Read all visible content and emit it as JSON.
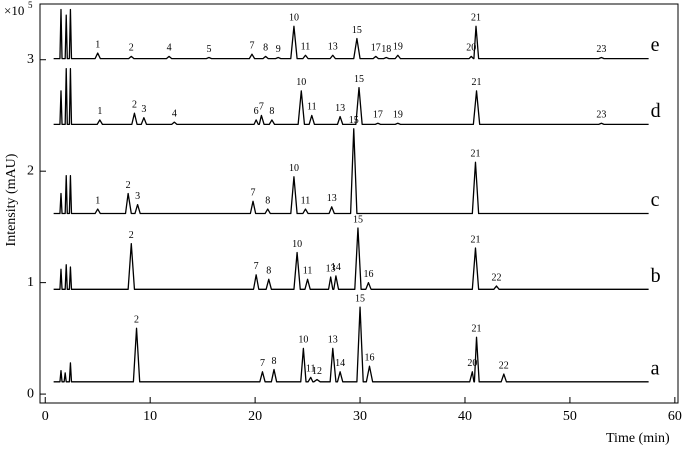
{
  "chart_data": {
    "type": "line",
    "x_label": "Time (min)",
    "y_label": "Intensity (mAU)",
    "y_unit_base": "×10",
    "y_unit_exponent": "5",
    "xlim": [
      -0.5,
      60.3
    ],
    "xticks": [
      0,
      10,
      20,
      30,
      40,
      50,
      60
    ],
    "ylim": [
      -0.08,
      3.5
    ],
    "yticks": [
      0,
      1,
      2,
      3
    ],
    "series": [
      {
        "name": "e",
        "color": "#000000",
        "x": [
          0.8,
          1.4,
          1.5,
          1.6,
          1.9,
          2.0,
          2.1,
          2.3,
          2.4,
          2.5,
          4.75,
          5,
          5.25,
          7.95,
          8.2,
          8.45,
          11.55,
          11.8,
          12.05,
          15.35,
          15.6,
          15.85,
          19.45,
          19.7,
          19.95,
          20.75,
          21,
          21.25,
          21.95,
          22.2,
          22.45,
          23.4,
          23.7,
          24.0,
          24.55,
          24.8,
          25.05,
          27.15,
          27.4,
          27.65,
          29.4,
          29.7,
          30.0,
          31.25,
          31.5,
          31.75,
          32.25,
          32.5,
          32.75,
          33.35,
          33.6,
          33.85,
          40.4,
          40.6,
          40.8,
          40.85,
          41.05,
          41.3,
          52.75,
          53,
          53.25,
          57.5
        ],
        "values": [
          3.01,
          3.01,
          3.45,
          3.01,
          3.01,
          3.4,
          3.01,
          3.01,
          3.45,
          3.01,
          3.01,
          3.06,
          3.01,
          3.01,
          3.03,
          3.01,
          3.01,
          3.03,
          3.01,
          3.01,
          3.02,
          3.01,
          3.01,
          3.05,
          3.01,
          3.01,
          3.03,
          3.01,
          3.01,
          3.02,
          3.01,
          3.01,
          3.3,
          3.01,
          3.01,
          3.04,
          3.01,
          3.01,
          3.04,
          3.01,
          3.01,
          3.19,
          3.01,
          3.01,
          3.03,
          3.01,
          3.01,
          3.02,
          3.01,
          3.01,
          3.04,
          3.01,
          3.01,
          3.03,
          3.01,
          3.01,
          3.3,
          3.01,
          3.01,
          3.02,
          3.01,
          3.01
        ],
        "peak_labels": [
          null,
          null,
          null,
          null,
          null,
          null,
          null,
          null,
          null,
          null,
          null,
          "1",
          null,
          null,
          "2",
          null,
          null,
          "4",
          null,
          null,
          "5",
          null,
          null,
          "7",
          null,
          null,
          "8",
          null,
          null,
          "9",
          null,
          null,
          "10",
          null,
          null,
          "11",
          null,
          null,
          "13",
          null,
          null,
          "15",
          null,
          null,
          "17",
          null,
          null,
          "18",
          null,
          null,
          "19",
          null,
          null,
          "20",
          null,
          null,
          "21",
          null,
          null,
          "23",
          null,
          null
        ]
      },
      {
        "name": "d",
        "color": "#000000",
        "x": [
          0.8,
          1.4,
          1.5,
          1.6,
          1.9,
          2.0,
          2.1,
          2.3,
          2.4,
          2.5,
          4.95,
          5.2,
          5.45,
          8.25,
          8.5,
          8.75,
          9.15,
          9.4,
          9.65,
          12.05,
          12.3,
          12.55,
          19.9,
          20.1,
          20.3,
          20.4,
          20.6,
          20.85,
          21.35,
          21.6,
          21.85,
          24.1,
          24.4,
          24.7,
          25.15,
          25.4,
          25.65,
          27.85,
          28.1,
          28.35,
          29.6,
          29.9,
          30.2,
          31.45,
          31.7,
          31.95,
          33.35,
          33.6,
          33.85,
          40.8,
          41.1,
          41.4,
          52.75,
          53,
          53.25,
          57.5
        ],
        "values": [
          2.42,
          2.42,
          2.72,
          2.42,
          2.42,
          2.92,
          2.42,
          2.42,
          2.92,
          2.42,
          2.42,
          2.46,
          2.42,
          2.42,
          2.52,
          2.42,
          2.42,
          2.48,
          2.42,
          2.42,
          2.44,
          2.42,
          2.42,
          2.46,
          2.42,
          2.42,
          2.5,
          2.42,
          2.42,
          2.46,
          2.42,
          2.42,
          2.72,
          2.42,
          2.42,
          2.5,
          2.42,
          2.42,
          2.49,
          2.42,
          2.42,
          2.75,
          2.42,
          2.42,
          2.43,
          2.42,
          2.42,
          2.43,
          2.42,
          2.42,
          2.72,
          2.42,
          2.42,
          2.43,
          2.42,
          2.42
        ],
        "peak_labels": [
          null,
          null,
          null,
          null,
          null,
          null,
          null,
          null,
          null,
          null,
          null,
          "1",
          null,
          null,
          "2",
          null,
          null,
          "3",
          null,
          null,
          "4",
          null,
          null,
          "6",
          null,
          null,
          "7",
          null,
          null,
          "8",
          null,
          null,
          "10",
          null,
          null,
          "11",
          null,
          null,
          "13",
          null,
          null,
          "15",
          null,
          null,
          "17",
          null,
          null,
          "19",
          null,
          null,
          "21",
          null,
          null,
          "23",
          null,
          null
        ]
      },
      {
        "name": "c",
        "color": "#000000",
        "x": [
          0.8,
          1.4,
          1.5,
          1.6,
          1.9,
          2.0,
          2.1,
          2.3,
          2.4,
          2.5,
          4.75,
          5,
          5.25,
          7.65,
          7.9,
          8.2,
          8.55,
          8.8,
          9.05,
          19.55,
          19.8,
          20.05,
          20.95,
          21.2,
          21.45,
          23.4,
          23.7,
          24.0,
          24.55,
          24.8,
          25.05,
          27.05,
          27.3,
          27.55,
          29.1,
          29.4,
          29.7,
          40.7,
          41.0,
          41.3,
          57.5
        ],
        "values": [
          1.62,
          1.62,
          1.8,
          1.62,
          1.62,
          1.96,
          1.62,
          1.62,
          1.96,
          1.62,
          1.62,
          1.66,
          1.62,
          1.62,
          1.8,
          1.62,
          1.62,
          1.7,
          1.62,
          1.62,
          1.73,
          1.62,
          1.62,
          1.66,
          1.62,
          1.62,
          1.95,
          1.62,
          1.62,
          1.66,
          1.62,
          1.62,
          1.68,
          1.62,
          1.62,
          2.38,
          1.62,
          1.62,
          2.08,
          1.62,
          1.62
        ],
        "peak_labels": [
          null,
          null,
          null,
          null,
          null,
          null,
          null,
          null,
          null,
          null,
          null,
          "1",
          null,
          null,
          "2",
          null,
          null,
          "3",
          null,
          null,
          "7",
          null,
          null,
          "8",
          null,
          null,
          "10",
          null,
          null,
          "11",
          null,
          null,
          "13",
          null,
          null,
          "15",
          null,
          null,
          "21",
          null,
          null
        ]
      },
      {
        "name": "b",
        "color": "#000000",
        "x": [
          0.8,
          1.4,
          1.5,
          1.6,
          1.9,
          2.0,
          2.1,
          2.3,
          2.4,
          2.5,
          7.9,
          8.2,
          8.5,
          19.85,
          20.1,
          20.35,
          21.05,
          21.3,
          21.55,
          23.7,
          24.0,
          24.3,
          24.75,
          25.0,
          25.25,
          27.0,
          27.2,
          27.4,
          27.5,
          27.7,
          27.95,
          29.5,
          29.8,
          30.1,
          30.55,
          30.8,
          31.05,
          40.7,
          41.0,
          41.3,
          42.75,
          43.0,
          43.25,
          57.5
        ],
        "values": [
          0.94,
          0.94,
          1.12,
          0.94,
          0.94,
          1.16,
          0.94,
          0.94,
          1.14,
          0.94,
          0.94,
          1.35,
          0.94,
          0.94,
          1.07,
          0.94,
          0.94,
          1.03,
          0.94,
          0.94,
          1.27,
          0.94,
          0.94,
          1.03,
          0.94,
          0.94,
          1.05,
          0.94,
          0.94,
          1.06,
          0.94,
          0.94,
          1.49,
          0.94,
          0.94,
          1.0,
          0.94,
          0.94,
          1.31,
          0.94,
          0.94,
          0.97,
          0.94,
          0.94
        ],
        "peak_labels": [
          null,
          null,
          null,
          null,
          null,
          null,
          null,
          null,
          null,
          null,
          null,
          "2",
          null,
          null,
          "7",
          null,
          null,
          "8",
          null,
          null,
          "10",
          null,
          null,
          "11",
          null,
          null,
          "13",
          null,
          null,
          "14",
          null,
          null,
          "15",
          null,
          null,
          "16",
          null,
          null,
          "21",
          null,
          null,
          "22",
          null,
          null
        ]
      },
      {
        "name": "a",
        "color": "#000000",
        "x": [
          0.8,
          1.4,
          1.5,
          1.6,
          1.8,
          1.9,
          2.0,
          2.3,
          2.4,
          2.5,
          8.4,
          8.7,
          9.0,
          20.45,
          20.7,
          20.95,
          21.55,
          21.8,
          22.05,
          24.35,
          24.6,
          24.85,
          25.05,
          25.3,
          25.5,
          25.6,
          25.9,
          26.2,
          27.15,
          27.4,
          27.7,
          27.85,
          28.1,
          28.35,
          29.7,
          30.0,
          30.3,
          30.6,
          30.9,
          31.2,
          40.45,
          40.7,
          40.85,
          40.9,
          41.1,
          41.35,
          43.45,
          43.7,
          43.95,
          57.5
        ],
        "values": [
          0.11,
          0.11,
          0.21,
          0.11,
          0.11,
          0.19,
          0.11,
          0.11,
          0.28,
          0.11,
          0.11,
          0.59,
          0.11,
          0.11,
          0.2,
          0.11,
          0.11,
          0.22,
          0.11,
          0.11,
          0.41,
          0.11,
          0.11,
          0.15,
          0.11,
          0.11,
          0.13,
          0.11,
          0.11,
          0.41,
          0.11,
          0.11,
          0.2,
          0.11,
          0.11,
          0.78,
          0.11,
          0.11,
          0.25,
          0.11,
          0.11,
          0.2,
          0.11,
          0.11,
          0.51,
          0.11,
          0.11,
          0.18,
          0.11,
          0.11
        ],
        "peak_labels": [
          null,
          null,
          null,
          null,
          null,
          null,
          null,
          null,
          null,
          null,
          null,
          "2",
          null,
          null,
          "7",
          null,
          null,
          "8",
          null,
          null,
          "10",
          null,
          null,
          "11",
          null,
          null,
          "12",
          null,
          null,
          "13",
          null,
          null,
          "14",
          null,
          null,
          "15",
          null,
          null,
          "16",
          null,
          null,
          "20",
          null,
          null,
          "21",
          null,
          null,
          "22",
          null,
          null
        ]
      }
    ]
  }
}
